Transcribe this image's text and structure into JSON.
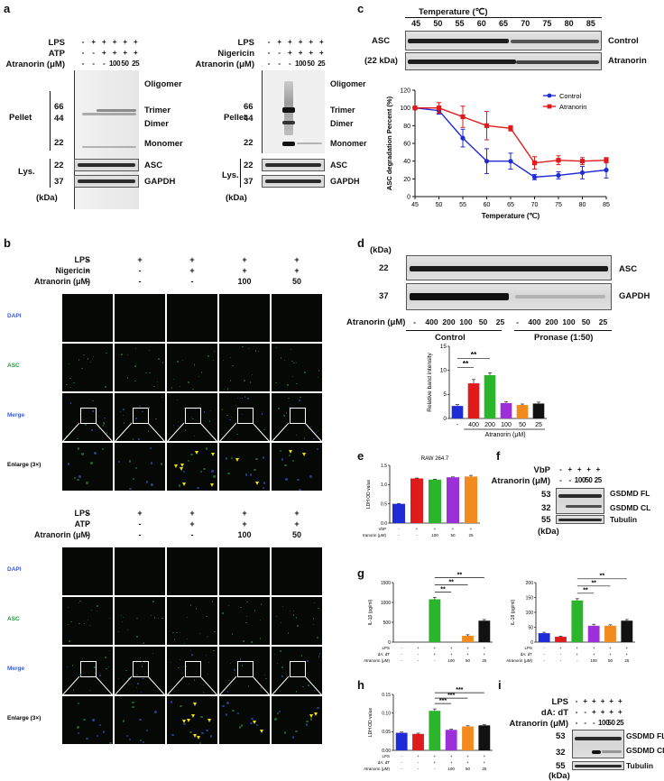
{
  "panel_letters": {
    "a": "a",
    "b": "b",
    "c": "c",
    "d": "d",
    "e": "e",
    "f": "f",
    "g": "g",
    "h": "h",
    "i": "i"
  },
  "panel_a": {
    "left": {
      "rows": [
        {
          "label": "LPS",
          "marks": [
            "-",
            "+",
            "+",
            "+",
            "+",
            "+"
          ]
        },
        {
          "label": "ATP",
          "marks": [
            "-",
            "-",
            "+",
            "+",
            "+",
            "+"
          ]
        },
        {
          "label": "Atranorin (μM)",
          "marks": [
            "-",
            "-",
            "-",
            "100",
            "50",
            "25"
          ]
        }
      ],
      "pellet_label": "Pellet",
      "lys_label": "Lys.",
      "kda_label": "(kDa)",
      "mw_pellet": [
        "66",
        "44",
        "22"
      ],
      "mw_lys": [
        "22",
        "37"
      ],
      "band_labels": [
        "Oligomer",
        "Trimer",
        "Dimer",
        "Monomer"
      ],
      "lys_bands": [
        "ASC",
        "GAPDH"
      ]
    },
    "right": {
      "rows": [
        {
          "label": "LPS",
          "marks": [
            "-",
            "+",
            "+",
            "+",
            "+",
            "+"
          ]
        },
        {
          "label": "Nigericin",
          "marks": [
            "-",
            "-",
            "+",
            "+",
            "+",
            "+"
          ]
        },
        {
          "label": "Atranorin (μM)",
          "marks": [
            "-",
            "-",
            "-",
            "100",
            "50",
            "25"
          ]
        }
      ],
      "pellet_label": "Pellet",
      "lys_label": "Lys.",
      "kda_label": "(kDa)",
      "mw_pellet": [
        "66",
        "44",
        "22"
      ],
      "mw_lys": [
        "22",
        "37"
      ],
      "band_labels": [
        "Oligomer",
        "Trimer",
        "Dimer",
        "Monomer"
      ],
      "lys_bands": [
        "ASC",
        "GAPDH"
      ]
    }
  },
  "panel_b": {
    "top": {
      "rows": [
        {
          "label": "LPS",
          "marks": [
            "-",
            "+",
            "+",
            "+",
            "+"
          ]
        },
        {
          "label": "Nigericin",
          "marks": [
            "-",
            "-",
            "+",
            "+",
            "+"
          ]
        },
        {
          "label": "Atranorin (μM)",
          "marks": [
            "-",
            "-",
            "-",
            "100",
            "50"
          ]
        }
      ],
      "row_labels": [
        "DAPI",
        "ASC",
        "Merge",
        "Enlarge (3×)"
      ]
    },
    "bottom": {
      "rows": [
        {
          "label": "LPS",
          "marks": [
            "-",
            "+",
            "+",
            "+",
            "+"
          ]
        },
        {
          "label": "ATP",
          "marks": [
            "-",
            "-",
            "+",
            "+",
            "+"
          ]
        },
        {
          "label": "Atranorin (μM)",
          "marks": [
            "-",
            "-",
            "-",
            "100",
            "50"
          ]
        }
      ],
      "row_labels": [
        "DAPI",
        "ASC",
        "Merge",
        "Enlarge (3×)"
      ]
    },
    "colors": {
      "dapi": "#3b5bd6",
      "asc": "#1a9a3a",
      "merge": "#3b5bd6"
    }
  },
  "panel_c": {
    "temp_title": "Temperature (℃)",
    "temps": [
      "45",
      "50",
      "55",
      "60",
      "65",
      "70",
      "75",
      "80",
      "85"
    ],
    "asc_label": "ASC",
    "kda_label": "(22 kDa)",
    "blot_labels": [
      "Control",
      "Atranorin"
    ]
  },
  "panel_d": {
    "kda_label": "(kDa)",
    "mw": [
      "22",
      "37"
    ],
    "blot_labels": [
      "ASC",
      "GAPDH"
    ],
    "atranorin_label": "Atranorin (μM)",
    "lane_marks": [
      "-",
      "400",
      "200",
      "100",
      "50",
      "25",
      "-",
      "400",
      "200",
      "100",
      "50",
      "25"
    ],
    "group_labels": [
      "Control",
      "Pronase (1:50)"
    ]
  },
  "panel_f": {
    "rows": [
      {
        "label": "VbP",
        "marks": [
          "-",
          "+",
          "+",
          "+",
          "+"
        ]
      },
      {
        "label": "Atranorin (μM)",
        "marks": [
          "-",
          "-",
          "100",
          "50",
          "25"
        ]
      }
    ],
    "mw": [
      "53",
      "32",
      "55"
    ],
    "band_labels": [
      "GSDMD FL",
      "GSDMD CL",
      "Tubulin"
    ],
    "kda_label": "(kDa)"
  },
  "panel_i": {
    "rows": [
      {
        "label": "LPS",
        "marks": [
          "-",
          "+",
          "+",
          "+",
          "+",
          "+"
        ]
      },
      {
        "label": "dA: dT",
        "marks": [
          "-",
          "-",
          "+",
          "+",
          "+",
          "+"
        ]
      },
      {
        "label": "Atranorin (μM)",
        "marks": [
          "-",
          "-",
          "-",
          "100",
          "50",
          "25"
        ]
      }
    ],
    "mw": [
      "53",
      "32",
      "55"
    ],
    "band_labels": [
      "GSDMD FL",
      "GSDMD CL",
      "Tubulin"
    ],
    "kda_label": "(kDa)"
  },
  "chart_data": [
    {
      "id": "c",
      "type": "line",
      "ylabel": "ASC degradation Percent (%)",
      "xlabel": "Temperature (℃)",
      "x": [
        45,
        50,
        55,
        60,
        65,
        70,
        75,
        80,
        85
      ],
      "xlim": [
        45,
        85
      ],
      "ylim": [
        0,
        120
      ],
      "xticks": [
        "45",
        "50",
        "55",
        "60",
        "65",
        "70",
        "75",
        "80",
        "85"
      ],
      "yticks": [
        "0",
        "20",
        "40",
        "60",
        "80",
        "100",
        "120"
      ],
      "legend_position": "top-right",
      "series": [
        {
          "name": "Control",
          "color": "#1f2bd6",
          "values": [
            100,
            97,
            66,
            40,
            40,
            22,
            24,
            27,
            30
          ],
          "errors": [
            2,
            4,
            10,
            14,
            9,
            3,
            4,
            7,
            9
          ]
        },
        {
          "name": "Atranorin",
          "color": "#e01b1b",
          "values": [
            100,
            100,
            90,
            80,
            77,
            38,
            41,
            40,
            41
          ],
          "errors": [
            2,
            6,
            12,
            16,
            3,
            7,
            5,
            4,
            3
          ]
        }
      ]
    },
    {
      "id": "d",
      "type": "bar",
      "ylabel": "Relative band intensity",
      "xlabel": "Atranorin (μM)",
      "categories": [
        "-",
        "400",
        "200",
        "100",
        "50",
        "25"
      ],
      "values": [
        2.6,
        7.3,
        9.0,
        3.2,
        2.8,
        3.1
      ],
      "errors": [
        0.3,
        0.8,
        0.5,
        0.3,
        0.2,
        0.3
      ],
      "colors": [
        "#1f2bd6",
        "#e01b1b",
        "#2bb52b",
        "#9b30d9",
        "#f28a1f",
        "#111111"
      ],
      "ylim": [
        0,
        15
      ],
      "yticks": [
        "0",
        "5",
        "10",
        "15"
      ],
      "significance": [
        {
          "from": 0,
          "to": 1,
          "label": "**"
        },
        {
          "from": 0,
          "to": 2,
          "label": "**"
        }
      ]
    },
    {
      "id": "e",
      "type": "bar",
      "title": "RAW 264.7",
      "ylabel": "LDH OD value",
      "categories": [
        "1",
        "2",
        "3",
        "4",
        "5"
      ],
      "values": [
        0.5,
        1.16,
        1.13,
        1.19,
        1.21
      ],
      "errors": [
        0.01,
        0.01,
        0.01,
        0.01,
        0.03
      ],
      "colors": [
        "#1f2bd6",
        "#e01b1b",
        "#2bb52b",
        "#9b30d9",
        "#f28a1f"
      ],
      "ylim": [
        0.0,
        1.5
      ],
      "yticks": [
        "0.0",
        "0.5",
        "1.0",
        "1.5"
      ],
      "row_labels": [
        "VbP",
        "Atranorin (μM)"
      ],
      "row_marks": [
        [
          "-",
          "+",
          "+",
          "+",
          "+"
        ],
        [
          "-",
          "-",
          "100",
          "50",
          "25"
        ]
      ]
    },
    {
      "id": "g1",
      "type": "bar",
      "ylabel": "IL-1β (pg/ml)",
      "categories": [
        "1",
        "2",
        "3",
        "4",
        "5",
        "6"
      ],
      "values": [
        0,
        0,
        1080,
        0,
        160,
        540
      ],
      "errors": [
        0,
        0,
        45,
        0,
        25,
        30
      ],
      "colors": [
        "#1f2bd6",
        "#e01b1b",
        "#2bb52b",
        "#9b30d9",
        "#f28a1f",
        "#111111"
      ],
      "ylim": [
        0,
        1500
      ],
      "yticks": [
        "0",
        "500",
        "1000",
        "1500"
      ],
      "row_labels": [
        "LPS",
        "dA: dT",
        "Atranorin (μM)"
      ],
      "row_marks": [
        [
          "-",
          "+",
          "+",
          "+",
          "+",
          "+"
        ],
        [
          "-",
          "-",
          "+",
          "+",
          "+",
          "+"
        ],
        [
          "-",
          "-",
          "-",
          "100",
          "50",
          "25"
        ]
      ],
      "significance": [
        {
          "from": 2,
          "to": 3,
          "label": "**"
        },
        {
          "from": 2,
          "to": 4,
          "label": "**"
        },
        {
          "from": 2,
          "to": 5,
          "label": "**"
        }
      ]
    },
    {
      "id": "g2",
      "type": "bar",
      "ylabel": "IL-18 (pg/ml)",
      "categories": [
        "1",
        "2",
        "3",
        "4",
        "5",
        "6"
      ],
      "values": [
        30,
        18,
        140,
        55,
        55,
        72
      ],
      "errors": [
        3,
        2,
        6,
        5,
        3,
        4
      ],
      "colors": [
        "#1f2bd6",
        "#e01b1b",
        "#2bb52b",
        "#9b30d9",
        "#f28a1f",
        "#111111"
      ],
      "ylim": [
        0,
        200
      ],
      "yticks": [
        "0",
        "50",
        "100",
        "150",
        "200"
      ],
      "row_labels": [
        "LPS",
        "dA: dT",
        "Atranorin (μM)"
      ],
      "row_marks": [
        [
          "-",
          "+",
          "+",
          "+",
          "+",
          "+"
        ],
        [
          "-",
          "-",
          "+",
          "+",
          "+",
          "+"
        ],
        [
          "-",
          "-",
          "-",
          "100",
          "50",
          "25"
        ]
      ],
      "significance": [
        {
          "from": 2,
          "to": 3,
          "label": "**"
        },
        {
          "from": 2,
          "to": 4,
          "label": "**"
        },
        {
          "from": 2,
          "to": 5,
          "label": "**"
        }
      ]
    },
    {
      "id": "h",
      "type": "bar",
      "ylabel": "LDH OD value",
      "categories": [
        "1",
        "2",
        "3",
        "4",
        "5",
        "6"
      ],
      "values": [
        0.047,
        0.044,
        0.106,
        0.055,
        0.064,
        0.067
      ],
      "errors": [
        0.002,
        0.002,
        0.005,
        0.002,
        0.002,
        0.002
      ],
      "colors": [
        "#1f2bd6",
        "#e01b1b",
        "#2bb52b",
        "#9b30d9",
        "#f28a1f",
        "#111111"
      ],
      "ylim": [
        0,
        0.15
      ],
      "yticks": [
        "0.00",
        "0.05",
        "0.10",
        "0.15"
      ],
      "row_labels": [
        "LPS",
        "dA: dT",
        "Atranorin (μM)"
      ],
      "row_marks": [
        [
          "-",
          "+",
          "+",
          "+",
          "+",
          "+"
        ],
        [
          "-",
          "-",
          "+",
          "+",
          "+",
          "+"
        ],
        [
          "-",
          "-",
          "-",
          "100",
          "50",
          "25"
        ]
      ],
      "significance": [
        {
          "from": 2,
          "to": 3,
          "label": "***"
        },
        {
          "from": 2,
          "to": 4,
          "label": "***"
        },
        {
          "from": 2,
          "to": 5,
          "label": "***"
        }
      ]
    }
  ]
}
